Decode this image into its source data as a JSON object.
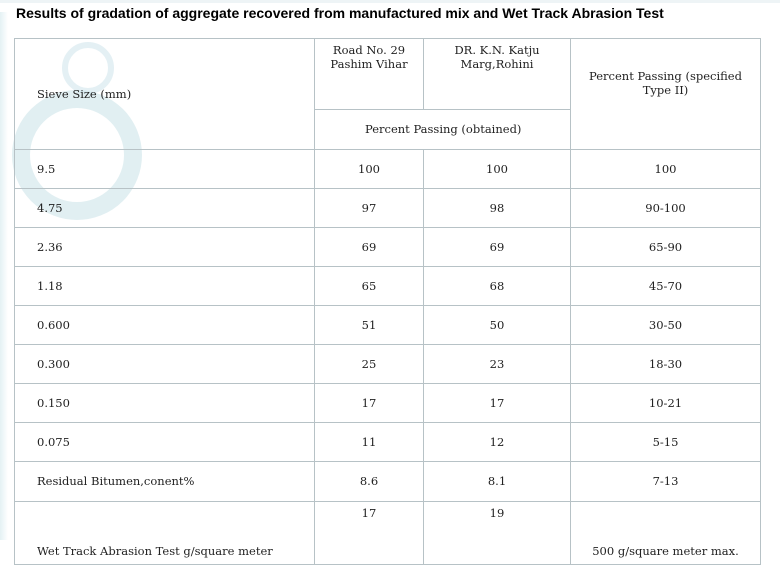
{
  "title": "Results of gradation of aggregate recovered from  manufactured mix and Wet Track Abrasion Test",
  "header": {
    "sieve_size": "Sieve Size (mm)",
    "site1": "Road No. 29 Pashim Vihar",
    "site2": "DR. K.N. Katju Marg,Rohini",
    "specified": "Percent Passing  (specified Type II)",
    "obtained": "Percent Passing  (obtained)"
  },
  "rows": [
    {
      "sieve": "9.5",
      "site1": "100",
      "site2": "100",
      "spec": "100"
    },
    {
      "sieve": "4.75",
      "site1": "97",
      "site2": "98",
      "spec": "90-100"
    },
    {
      "sieve": "2.36",
      "site1": "69",
      "site2": "69",
      "spec": "65-90"
    },
    {
      "sieve": "1.18",
      "site1": "65",
      "site2": "68",
      "spec": "45-70"
    },
    {
      "sieve": "0.600",
      "site1": "51",
      "site2": "50",
      "spec": "30-50"
    },
    {
      "sieve": "0.300",
      "site1": "25",
      "site2": "23",
      "spec": "18-30"
    },
    {
      "sieve": "0.150",
      "site1": "17",
      "site2": "17",
      "spec": "10-21"
    },
    {
      "sieve": "0.075",
      "site1": "11",
      "site2": "12",
      "spec": "5-15"
    }
  ],
  "bitumen": {
    "label": "Residual Bitumen,conent%",
    "site1": "8.6",
    "site2": "8.1",
    "spec": "7-13"
  },
  "abrasion": {
    "label": "Wet Track Abrasion Test  g/square meter",
    "site1": "17",
    "site2": "19",
    "spec": "500 g/square meter max."
  }
}
